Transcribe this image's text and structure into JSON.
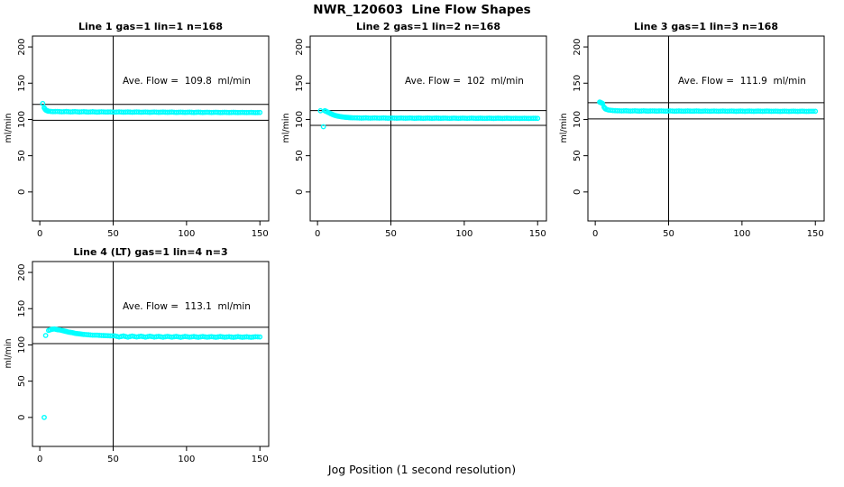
{
  "chart_data": {
    "type": "scatter",
    "title": "NWR_120603  Line Flow Shapes",
    "xlabel": "Jog Position (1 second resolution)",
    "marker": "open-circle",
    "marker_color": "#00FFFF",
    "axis_color": "#000000",
    "grid": false,
    "x_range": [
      -5,
      156
    ],
    "y_range": [
      -40,
      215
    ],
    "x_ticks": [
      0,
      50,
      100,
      150
    ],
    "y_ticks": [
      0,
      50,
      100,
      150,
      200
    ],
    "vline_x": 50,
    "subplots": [
      {
        "title": "Line 1 gas=1 lin=1 n=168",
        "ylabel": "ml/min",
        "annotation": "Ave. Flow =  109.8  ml/min",
        "ave_flow": 109.8,
        "ref_lines": [
          98.8,
          120.8
        ],
        "points": [
          [
            2,
            122
          ],
          [
            3,
            116
          ],
          [
            4,
            113
          ],
          [
            5,
            112
          ],
          [
            6,
            111.3
          ],
          [
            9,
            110.8
          ],
          [
            12,
            111
          ],
          [
            15,
            110.5
          ],
          [
            18,
            110.9
          ],
          [
            21,
            110.4
          ],
          [
            24,
            110.8
          ],
          [
            27,
            110.3
          ],
          [
            30,
            110.7
          ],
          [
            33,
            110.2
          ],
          [
            36,
            110.6
          ],
          [
            39,
            110.1
          ],
          [
            42,
            110.5
          ],
          [
            45,
            110.2
          ],
          [
            48,
            110.4
          ],
          [
            51,
            110
          ],
          [
            54,
            110.4
          ],
          [
            57,
            110
          ],
          [
            60,
            110.3
          ],
          [
            63,
            109.9
          ],
          [
            66,
            110.3
          ],
          [
            69,
            109.9
          ],
          [
            72,
            110.2
          ],
          [
            75,
            109.8
          ],
          [
            78,
            110.2
          ],
          [
            81,
            109.8
          ],
          [
            84,
            110.1
          ],
          [
            87,
            109.8
          ],
          [
            90,
            110.1
          ],
          [
            93,
            109.7
          ],
          [
            96,
            110
          ],
          [
            99,
            109.7
          ],
          [
            102,
            110
          ],
          [
            105,
            109.6
          ],
          [
            108,
            110
          ],
          [
            111,
            109.6
          ],
          [
            114,
            109.9
          ],
          [
            117,
            109.6
          ],
          [
            120,
            109.9
          ],
          [
            123,
            109.5
          ],
          [
            126,
            109.8
          ],
          [
            129,
            109.5
          ],
          [
            132,
            109.8
          ],
          [
            135,
            109.5
          ],
          [
            138,
            109.7
          ],
          [
            141,
            109.5
          ],
          [
            144,
            109.7
          ],
          [
            147,
            109.4
          ],
          [
            150,
            109.6
          ]
        ]
      },
      {
        "title": "Line 2 gas=1 lin=2 n=168",
        "ylabel": "ml/min",
        "annotation": "Ave. Flow =  102  ml/min",
        "ave_flow": 102,
        "ref_lines": [
          91.8,
          112.2
        ],
        "points": [
          [
            2,
            112
          ],
          [
            4,
            90
          ],
          [
            5,
            112
          ],
          [
            6,
            111
          ],
          [
            8,
            109
          ],
          [
            10,
            107
          ],
          [
            12,
            105.5
          ],
          [
            14,
            104.5
          ],
          [
            16,
            103.8
          ],
          [
            18,
            103.2
          ],
          [
            20,
            102.8
          ],
          [
            22,
            102.5
          ],
          [
            24,
            102.3
          ],
          [
            27,
            102.2
          ],
          [
            30,
            101.9
          ],
          [
            33,
            102.2
          ],
          [
            36,
            101.8
          ],
          [
            39,
            102.1
          ],
          [
            42,
            101.8
          ],
          [
            45,
            102.1
          ],
          [
            48,
            101.7
          ],
          [
            51,
            102
          ],
          [
            54,
            101.7
          ],
          [
            57,
            102
          ],
          [
            60,
            101.7
          ],
          [
            63,
            102
          ],
          [
            66,
            101.6
          ],
          [
            69,
            101.9
          ],
          [
            72,
            101.6
          ],
          [
            75,
            101.9
          ],
          [
            78,
            101.6
          ],
          [
            81,
            101.9
          ],
          [
            84,
            101.6
          ],
          [
            87,
            101.8
          ],
          [
            90,
            101.5
          ],
          [
            93,
            101.8
          ],
          [
            96,
            101.5
          ],
          [
            99,
            101.8
          ],
          [
            102,
            101.5
          ],
          [
            105,
            101.8
          ],
          [
            108,
            101.5
          ],
          [
            111,
            101.7
          ],
          [
            114,
            101.5
          ],
          [
            117,
            101.7
          ],
          [
            120,
            101.4
          ],
          [
            123,
            101.7
          ],
          [
            126,
            101.4
          ],
          [
            129,
            101.7
          ],
          [
            132,
            101.4
          ],
          [
            135,
            101.6
          ],
          [
            138,
            101.4
          ],
          [
            141,
            101.6
          ],
          [
            144,
            101.4
          ],
          [
            147,
            101.6
          ],
          [
            150,
            101.5
          ]
        ]
      },
      {
        "title": "Line 3 gas=1 lin=3 n=168",
        "ylabel": "ml/min",
        "annotation": "Ave. Flow =  111.9  ml/min",
        "ave_flow": 111.9,
        "ref_lines": [
          100.7,
          123.1
        ],
        "points": [
          [
            3,
            124
          ],
          [
            4,
            123
          ],
          [
            5,
            122
          ],
          [
            6,
            117
          ],
          [
            7,
            114.5
          ],
          [
            9,
            113
          ],
          [
            12,
            112.3
          ],
          [
            15,
            112
          ],
          [
            18,
            111.8
          ],
          [
            21,
            112
          ],
          [
            24,
            111.6
          ],
          [
            27,
            111.9
          ],
          [
            30,
            111.5
          ],
          [
            33,
            111.9
          ],
          [
            36,
            111.5
          ],
          [
            39,
            111.8
          ],
          [
            42,
            111.5
          ],
          [
            45,
            111.8
          ],
          [
            48,
            111.4
          ],
          [
            51,
            111.8
          ],
          [
            54,
            111.4
          ],
          [
            57,
            111.7
          ],
          [
            60,
            111.4
          ],
          [
            63,
            111.7
          ],
          [
            66,
            111.4
          ],
          [
            69,
            111.7
          ],
          [
            72,
            111.3
          ],
          [
            75,
            111.6
          ],
          [
            78,
            111.3
          ],
          [
            81,
            111.6
          ],
          [
            84,
            111.3
          ],
          [
            87,
            111.6
          ],
          [
            90,
            111.3
          ],
          [
            93,
            111.6
          ],
          [
            96,
            111.2
          ],
          [
            99,
            111.5
          ],
          [
            102,
            111.2
          ],
          [
            105,
            111.5
          ],
          [
            108,
            111.2
          ],
          [
            111,
            111.5
          ],
          [
            114,
            111.2
          ],
          [
            117,
            111.5
          ],
          [
            120,
            111.2
          ],
          [
            123,
            111.4
          ],
          [
            126,
            111.1
          ],
          [
            129,
            111.4
          ],
          [
            132,
            111.1
          ],
          [
            135,
            111.4
          ],
          [
            138,
            111.1
          ],
          [
            141,
            111.4
          ],
          [
            144,
            111.1
          ],
          [
            147,
            111.3
          ],
          [
            150,
            111.3
          ]
        ]
      },
      {
        "title": "Line 4 (LT) gas=1 lin=4 n=3",
        "ylabel": "ml/min",
        "annotation": "Ave. Flow =  113.1  ml/min",
        "ave_flow": 113.1,
        "ref_lines": [
          101.8,
          124.4
        ],
        "points": [
          [
            3,
            0
          ],
          [
            4,
            113
          ],
          [
            6,
            120
          ],
          [
            8,
            121.5
          ],
          [
            10,
            122
          ],
          [
            12,
            121
          ],
          [
            14,
            120.5
          ],
          [
            16,
            119.5
          ],
          [
            18,
            118.5
          ],
          [
            20,
            117.5
          ],
          [
            22,
            117
          ],
          [
            24,
            116
          ],
          [
            26,
            115.5
          ],
          [
            28,
            115
          ],
          [
            30,
            114.5
          ],
          [
            33,
            114
          ],
          [
            36,
            113.5
          ],
          [
            39,
            113.5
          ],
          [
            42,
            113
          ],
          [
            45,
            112.8
          ],
          [
            48,
            112.5
          ],
          [
            51,
            112.5
          ],
          [
            54,
            111
          ],
          [
            57,
            112.3
          ],
          [
            60,
            110.8
          ],
          [
            63,
            112.2
          ],
          [
            66,
            111
          ],
          [
            69,
            112
          ],
          [
            72,
            110.8
          ],
          [
            75,
            112
          ],
          [
            78,
            110.9
          ],
          [
            81,
            111.8
          ],
          [
            84,
            110.7
          ],
          [
            87,
            111.8
          ],
          [
            90,
            110.8
          ],
          [
            93,
            111.7
          ],
          [
            96,
            110.6
          ],
          [
            99,
            111.7
          ],
          [
            102,
            110.8
          ],
          [
            105,
            111.5
          ],
          [
            108,
            110.6
          ],
          [
            111,
            111.6
          ],
          [
            114,
            110.7
          ],
          [
            117,
            111.4
          ],
          [
            120,
            110.6
          ],
          [
            123,
            111.5
          ],
          [
            126,
            110.7
          ],
          [
            129,
            111.3
          ],
          [
            132,
            110.5
          ],
          [
            135,
            111.4
          ],
          [
            138,
            110.6
          ],
          [
            141,
            111.2
          ],
          [
            144,
            110.5
          ],
          [
            147,
            111.3
          ],
          [
            150,
            111
          ]
        ]
      }
    ]
  }
}
